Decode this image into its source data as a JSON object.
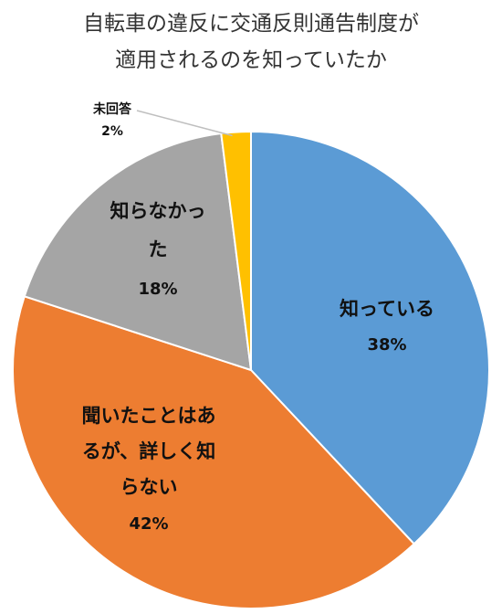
{
  "title_lines": [
    "自転車の違反に交通反則通告制度が",
    "適用されるのを知っていたか"
  ],
  "chart_data": {
    "type": "pie",
    "title": "自転車の違反に交通反則通告制度が適用されるのを知っていたか",
    "start_angle": "12 o'clock",
    "direction": "clockwise",
    "slices": [
      {
        "label_lines": [
          "知っている"
        ],
        "value": 38,
        "pct_label": "38%",
        "color": "#5B9BD5"
      },
      {
        "label_lines": [
          "聞いたことはあ",
          "るが、詳しく知",
          "らない"
        ],
        "value": 42,
        "pct_label": "42%",
        "color": "#ED7D31"
      },
      {
        "label_lines": [
          "知らなかっ",
          "た"
        ],
        "value": 18,
        "pct_label": "18%",
        "color": "#A5A5A5"
      },
      {
        "label_lines": [
          "未回答"
        ],
        "value": 2,
        "pct_label": "2%",
        "color": "#FFC000"
      }
    ]
  }
}
